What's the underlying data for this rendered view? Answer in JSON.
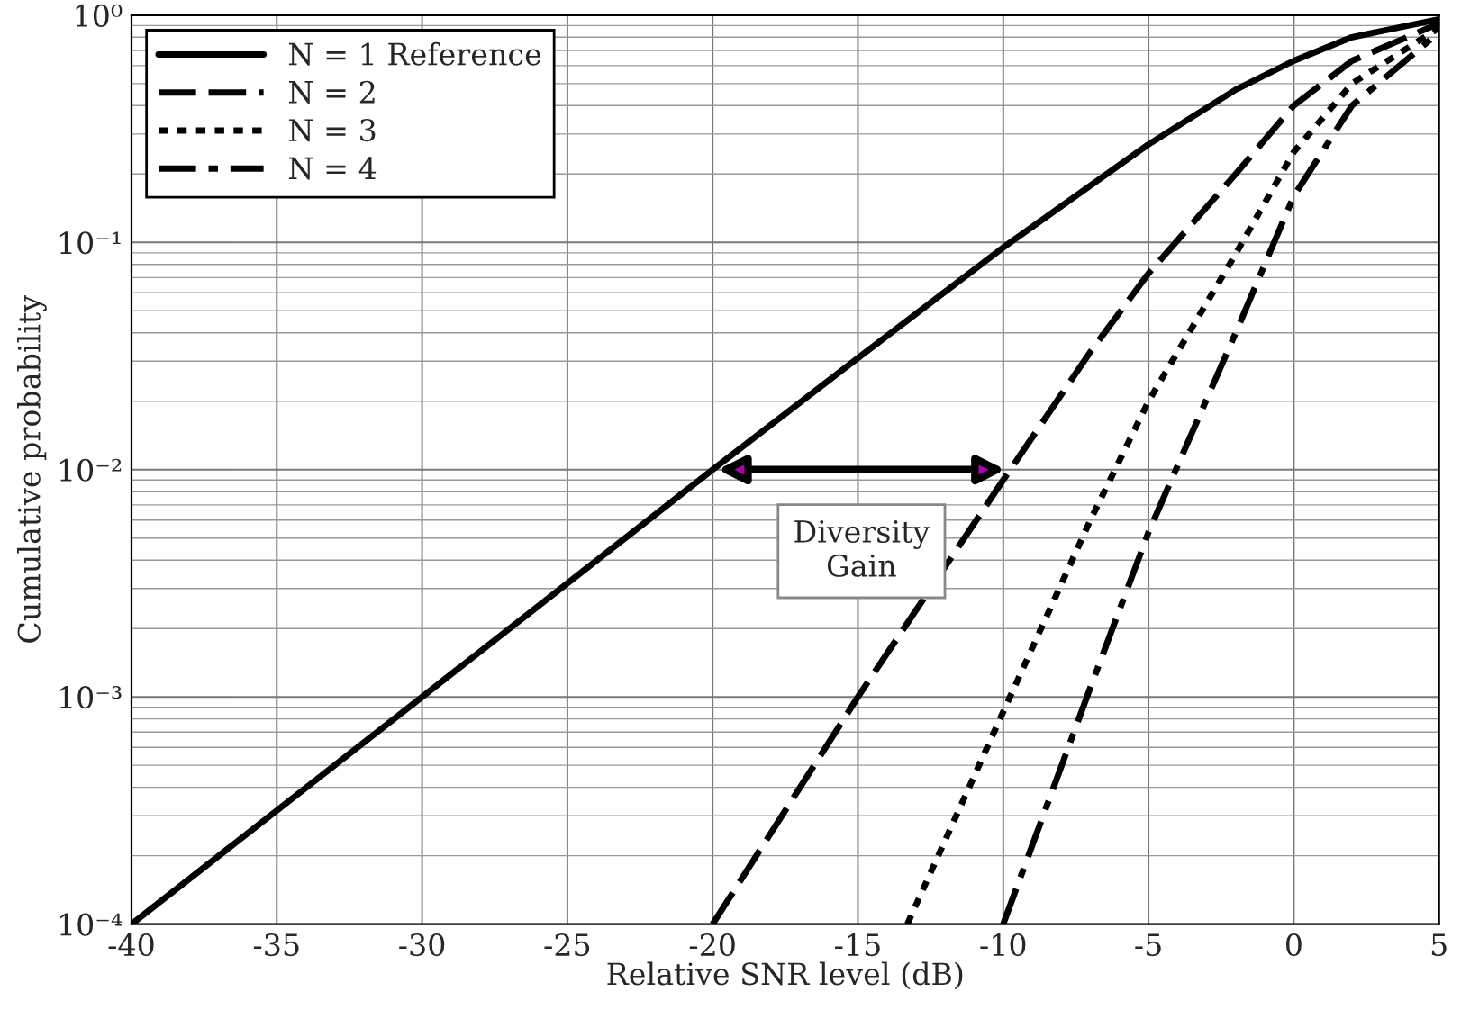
{
  "chart_data": {
    "type": "line",
    "xlabel": "Relative SNR level (dB)",
    "ylabel": "Cumulative probability",
    "xlim": [
      -40,
      5
    ],
    "xticks": [
      -40,
      -35,
      -30,
      -25,
      -20,
      -15,
      -10,
      -5,
      0,
      5
    ],
    "ylim": [
      0.0001,
      1
    ],
    "yticks": [
      {
        "value": 0.0001,
        "label": "10⁻⁴"
      },
      {
        "value": 0.001,
        "label": "10⁻³"
      },
      {
        "value": 0.01,
        "label": "10⁻²"
      },
      {
        "value": 0.1,
        "label": "10⁻¹"
      },
      {
        "value": 1,
        "label": "10⁰"
      }
    ],
    "log": "y",
    "grid": true,
    "legend": "top left",
    "series": [
      {
        "name": "N = 1 Reference",
        "color": "#000000",
        "line_style": "solid",
        "x": [
          -40,
          -30,
          -20,
          -15,
          -10,
          -5,
          -2,
          0,
          2,
          5
        ],
        "values": [
          0.0001,
          0.001,
          0.01,
          0.031,
          0.095,
          0.27,
          0.47,
          0.63,
          0.8,
          0.96
        ]
      },
      {
        "name": "N = 2",
        "color": "#000000",
        "line_style": "dashed",
        "x": [
          -20,
          -15,
          -10,
          -7,
          -5,
          -2,
          0,
          2,
          5
        ],
        "values": [
          0.0001,
          0.001,
          0.009,
          0.033,
          0.073,
          0.2,
          0.4,
          0.63,
          0.92
        ]
      },
      {
        "name": "N = 3",
        "color": "#000000",
        "line_style": "dotted",
        "x": [
          -13.3,
          -10,
          -7,
          -5,
          -2,
          0,
          2,
          5
        ],
        "values": [
          0.0001,
          0.00086,
          0.006,
          0.02,
          0.089,
          0.25,
          0.5,
          0.88
        ]
      },
      {
        "name": "N = 4",
        "color": "#000000",
        "line_style": "dashdot",
        "x": [
          -10,
          -7,
          -5,
          -2,
          0,
          2,
          5
        ],
        "values": [
          0.0001,
          0.0011,
          0.0053,
          0.04,
          0.16,
          0.4,
          0.84
        ]
      }
    ],
    "annotations": [
      "Diversity\nGain"
    ]
  }
}
